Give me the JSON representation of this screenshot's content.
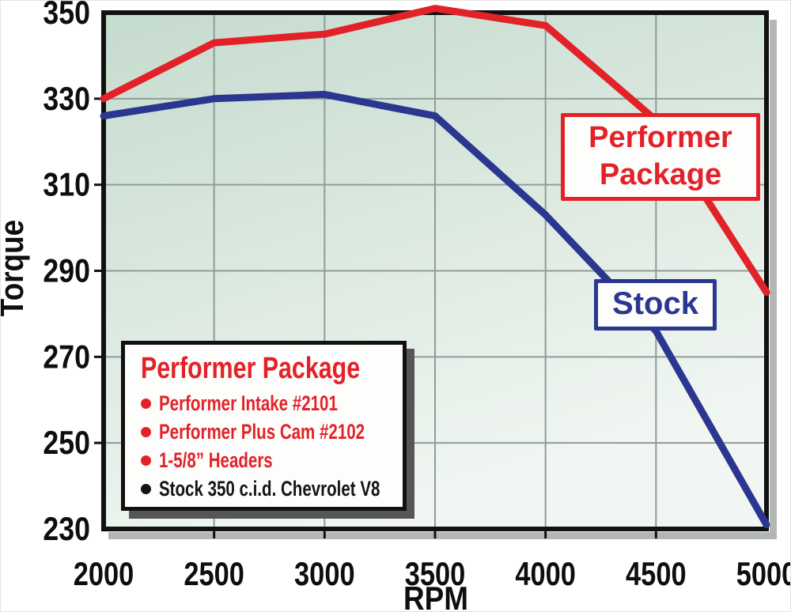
{
  "chart_data": {
    "type": "line",
    "x": [
      2000,
      2500,
      3000,
      3500,
      4000,
      4500,
      5000
    ],
    "series": [
      {
        "name": "Performer Package",
        "color": "#e32128",
        "values": [
          330,
          343,
          345,
          351,
          347,
          325,
          285
        ]
      },
      {
        "name": "Stock",
        "color": "#2b3690",
        "values": [
          326,
          330,
          331,
          326,
          303,
          276,
          231
        ]
      }
    ],
    "xlabel": "RPM",
    "ylabel": "Torque",
    "xlim": [
      2000,
      5000
    ],
    "ylim": [
      230,
      350
    ],
    "x_ticks": [
      2000,
      2500,
      3000,
      3500,
      4000,
      4500,
      5000
    ],
    "y_ticks": [
      230,
      250,
      270,
      290,
      310,
      330,
      350
    ],
    "grid": true,
    "legend_position": "in-plot callout boxes"
  },
  "annotations": {
    "performer_label": {
      "line1": "Performer",
      "line2": "Package"
    },
    "stock_label": {
      "text": "Stock"
    }
  },
  "legend": {
    "title": "Performer Package",
    "items": [
      {
        "text": "Performer Intake #2101",
        "color": "#e32128"
      },
      {
        "text": "Performer Plus Cam #2102",
        "color": "#e32128"
      },
      {
        "text": "1-5/8” Headers",
        "color": "#e32128"
      },
      {
        "text": "Stock 350 c.i.d. Chevrolet V8",
        "color": "#141414"
      }
    ]
  },
  "colors": {
    "red": "#e32128",
    "blue": "#2b3690",
    "gridline": "#8f9c98",
    "axis": "#111111",
    "axis_shadow": "#b2b7b4",
    "plot_bg_top": "#c5dbce",
    "plot_bg_bottom": "#f1f6f2",
    "legend_shadow": "#565656",
    "text": "#0e0e0e"
  }
}
